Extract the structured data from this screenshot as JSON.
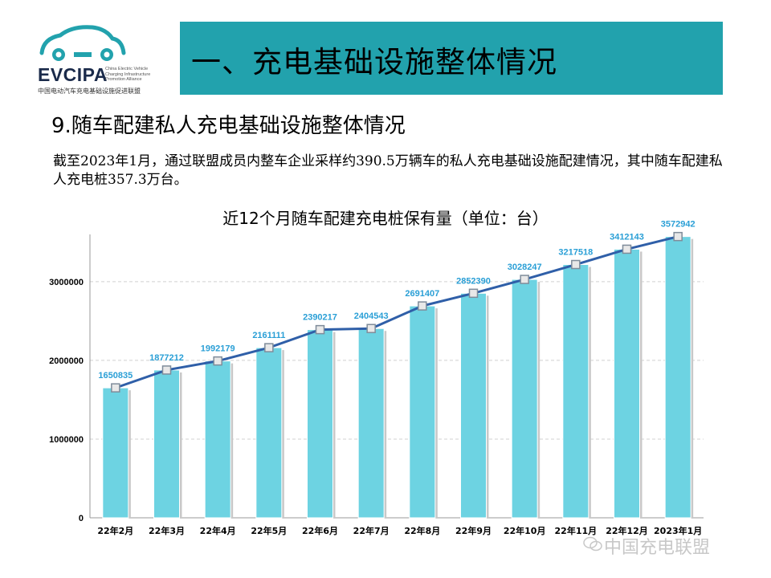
{
  "logo": {
    "acronym": "EVCIPA",
    "english_lines": [
      "China Electric Vehicle",
      "Charging Infrastructure",
      "Promotion Alliance"
    ],
    "chinese": "中国电动汽车充电基础设施促进联盟"
  },
  "header": {
    "title": "一、充电基础设施整体情况"
  },
  "section": {
    "subtitle": "9.随车配建私人充电基础设施整体情况",
    "description": "截至2023年1月，通过联盟成员内整车企业采样约390.5万辆车的私人充电基础设施配建情况，其中随车配建私人充电桩357.3万台。"
  },
  "watermark": {
    "text": "中国充电联盟"
  },
  "colors": {
    "title_bar": "#22a2ad",
    "bar": "#6dd3e2",
    "line": "#2f5fa8",
    "label": "#2a9fd6"
  },
  "chart_data": {
    "type": "bar",
    "title": "近12个月随车配建充电桩保有量（单位：台）",
    "categories": [
      "22年2月",
      "22年3月",
      "22年4月",
      "22年5月",
      "22年6月",
      "22年7月",
      "22年8月",
      "22年9月",
      "22年10月",
      "22年11月",
      "22年12月",
      "2023年1月"
    ],
    "values": [
      1650835,
      1877212,
      1992179,
      2161111,
      2390217,
      2404543,
      2691407,
      2852390,
      3028247,
      3217518,
      3412143,
      3572942
    ],
    "yticks": [
      0,
      1000000,
      2000000,
      3000000
    ],
    "ylim": [
      0,
      3600000
    ],
    "overlay": "line",
    "grid": true,
    "xlabel": "",
    "ylabel": ""
  }
}
